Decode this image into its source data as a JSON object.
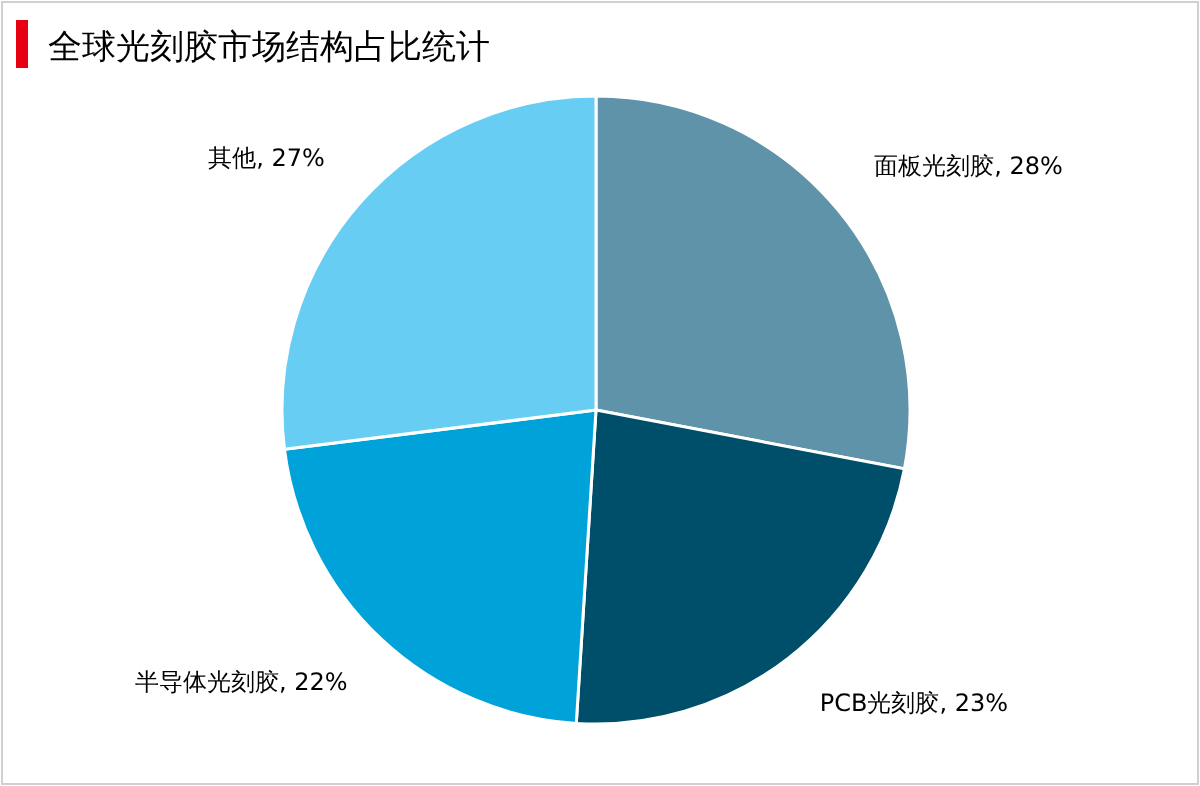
{
  "chart_data": {
    "type": "pie",
    "title": "全球光刻胶市场结构占比统计",
    "categories": [
      "面板光刻胶",
      "PCB光刻胶",
      "半导体光刻胶",
      "其他"
    ],
    "values": [
      28,
      23,
      22,
      27
    ],
    "colors": [
      "#5e93a9",
      "#004f6a",
      "#00a3d9",
      "#68cdf3"
    ],
    "value_labels": [
      ", 28%",
      ", 23%",
      ", 22%",
      ", 27%"
    ]
  }
}
